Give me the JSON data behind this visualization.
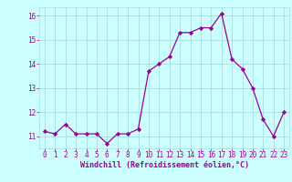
{
  "x": [
    0,
    1,
    2,
    3,
    4,
    5,
    6,
    7,
    8,
    9,
    10,
    11,
    12,
    13,
    14,
    15,
    16,
    17,
    18,
    19,
    20,
    21,
    22,
    23
  ],
  "y": [
    11.2,
    11.1,
    11.5,
    11.1,
    11.1,
    11.1,
    10.7,
    11.1,
    11.1,
    11.3,
    13.7,
    14.0,
    14.3,
    15.3,
    15.3,
    15.5,
    15.5,
    16.1,
    14.2,
    13.8,
    13.0,
    11.7,
    11.0,
    12.0
  ],
  "line_color": "#990099",
  "marker": "D",
  "marker_size": 2.2,
  "bg_color": "#ccffff",
  "grid_color": "#aadddd",
  "xlabel": "Windchill (Refroidissement éolien,°C)",
  "xlabel_color": "#990099",
  "tick_color": "#990099",
  "ylim": [
    10.5,
    16.35
  ],
  "xlim": [
    -0.5,
    23.5
  ],
  "yticks": [
    11,
    12,
    13,
    14,
    15,
    16
  ],
  "xticks": [
    0,
    1,
    2,
    3,
    4,
    5,
    6,
    7,
    8,
    9,
    10,
    11,
    12,
    13,
    14,
    15,
    16,
    17,
    18,
    19,
    20,
    21,
    22,
    23
  ],
  "linewidth": 0.9,
  "xlabel_fontsize": 6.0,
  "tick_fontsize": 5.5
}
